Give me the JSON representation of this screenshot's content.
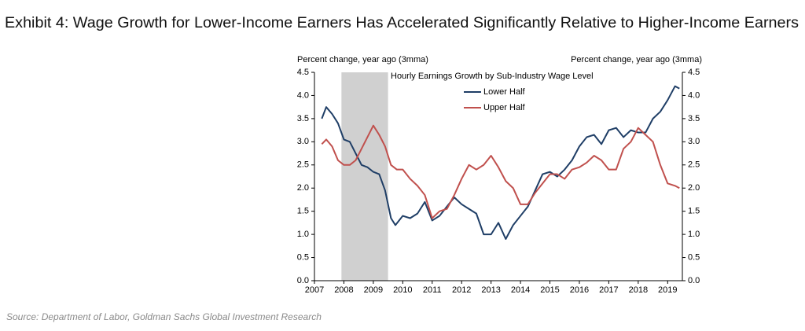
{
  "chart_data": {
    "type": "line",
    "title": "Exhibit 4: Wage Growth for Lower-Income Earners Has Accelerated Significantly Relative to Higher-Income Earners",
    "source": "Source: Department of Labor, Goldman Sachs Global Investment Research",
    "y_label": "Percent change, year ago (3mma)",
    "y2_label": "Percent change, year ago (3mma)",
    "legend_title": "Hourly Earnings Growth by Sub-Industry Wage Level",
    "recession": [
      2007.917,
      2009.5
    ],
    "recession_color": "#d0d0d0",
    "xlim": [
      2007,
      2019.5
    ],
    "xticks": [
      2007,
      2008,
      2009,
      2010,
      2011,
      2012,
      2013,
      2014,
      2015,
      2016,
      2017,
      2018,
      2019
    ],
    "ylim": [
      0,
      4.5
    ],
    "yticks": [
      {
        "value": 0,
        "label": "0.0"
      },
      {
        "value": 0.5,
        "label": "0.5"
      },
      {
        "value": 1,
        "label": "1.0"
      },
      {
        "value": 1.5,
        "label": "1.5"
      },
      {
        "value": 2,
        "label": "2.0"
      },
      {
        "value": 2.5,
        "label": "2.5"
      },
      {
        "value": 3,
        "label": "3.0"
      },
      {
        "value": 3.5,
        "label": "3.5"
      },
      {
        "value": 4,
        "label": "4.0"
      },
      {
        "value": 4.5,
        "label": "4.5"
      }
    ],
    "y2lim": [
      0,
      4.5
    ],
    "y2ticks": [
      {
        "value": 0,
        "label": "0.0"
      },
      {
        "value": 0.5,
        "label": "0.5"
      },
      {
        "value": 1,
        "label": "1.0"
      },
      {
        "value": 1.5,
        "label": "1.5"
      },
      {
        "value": 2,
        "label": "2.0"
      },
      {
        "value": 2.5,
        "label": "2.5"
      },
      {
        "value": 3,
        "label": "3.0"
      },
      {
        "value": 3.5,
        "label": "3.5"
      },
      {
        "value": 4,
        "label": "4.0"
      },
      {
        "value": 4.5,
        "label": "4.5"
      }
    ],
    "series": [
      {
        "name": "Lower Half",
        "color": "#1f3e66",
        "x": [
          2007.25,
          2007.4,
          2007.6,
          2007.8,
          2008.0,
          2008.2,
          2008.4,
          2008.6,
          2008.8,
          2009.0,
          2009.2,
          2009.4,
          2009.6,
          2009.75,
          2010.0,
          2010.25,
          2010.5,
          2010.75,
          2011.0,
          2011.25,
          2011.5,
          2011.75,
          2012.0,
          2012.25,
          2012.5,
          2012.75,
          2013.0,
          2013.25,
          2013.5,
          2013.75,
          2014.0,
          2014.25,
          2014.5,
          2014.75,
          2015.0,
          2015.25,
          2015.5,
          2015.75,
          2016.0,
          2016.25,
          2016.5,
          2016.75,
          2017.0,
          2017.25,
          2017.5,
          2017.75,
          2018.0,
          2018.25,
          2018.5,
          2018.75,
          2019.0,
          2019.25,
          2019.4
        ],
        "values": [
          3.5,
          3.75,
          3.6,
          3.4,
          3.05,
          3.0,
          2.75,
          2.5,
          2.45,
          2.35,
          2.3,
          1.95,
          1.35,
          1.2,
          1.4,
          1.35,
          1.45,
          1.7,
          1.3,
          1.4,
          1.6,
          1.8,
          1.65,
          1.55,
          1.45,
          1.0,
          1.0,
          1.25,
          0.9,
          1.2,
          1.4,
          1.6,
          1.95,
          2.3,
          2.35,
          2.25,
          2.4,
          2.6,
          2.9,
          3.1,
          3.15,
          2.95,
          3.25,
          3.3,
          3.1,
          3.25,
          3.2,
          3.2,
          3.5,
          3.65,
          3.9,
          4.2,
          4.15
        ]
      },
      {
        "name": "Upper Half",
        "color": "#c0504d",
        "x": [
          2007.25,
          2007.4,
          2007.6,
          2007.8,
          2008.0,
          2008.2,
          2008.4,
          2008.6,
          2008.8,
          2009.0,
          2009.2,
          2009.4,
          2009.6,
          2009.8,
          2010.0,
          2010.25,
          2010.5,
          2010.75,
          2011.0,
          2011.25,
          2011.5,
          2011.75,
          2012.0,
          2012.25,
          2012.5,
          2012.75,
          2013.0,
          2013.25,
          2013.5,
          2013.75,
          2014.0,
          2014.25,
          2014.5,
          2014.75,
          2015.0,
          2015.25,
          2015.5,
          2015.75,
          2016.0,
          2016.25,
          2016.5,
          2016.75,
          2017.0,
          2017.25,
          2017.5,
          2017.75,
          2018.0,
          2018.25,
          2018.5,
          2018.75,
          2019.0,
          2019.25,
          2019.4
        ],
        "values": [
          2.95,
          3.05,
          2.9,
          2.6,
          2.5,
          2.5,
          2.6,
          2.85,
          3.1,
          3.35,
          3.15,
          2.9,
          2.5,
          2.4,
          2.4,
          2.2,
          2.05,
          1.85,
          1.35,
          1.5,
          1.55,
          1.85,
          2.2,
          2.5,
          2.4,
          2.5,
          2.7,
          2.45,
          2.15,
          2.0,
          1.65,
          1.65,
          1.9,
          2.1,
          2.3,
          2.3,
          2.2,
          2.4,
          2.45,
          2.55,
          2.7,
          2.6,
          2.4,
          2.4,
          2.85,
          3.0,
          3.3,
          3.15,
          3.0,
          2.5,
          2.1,
          2.05,
          2.0
        ]
      }
    ]
  }
}
